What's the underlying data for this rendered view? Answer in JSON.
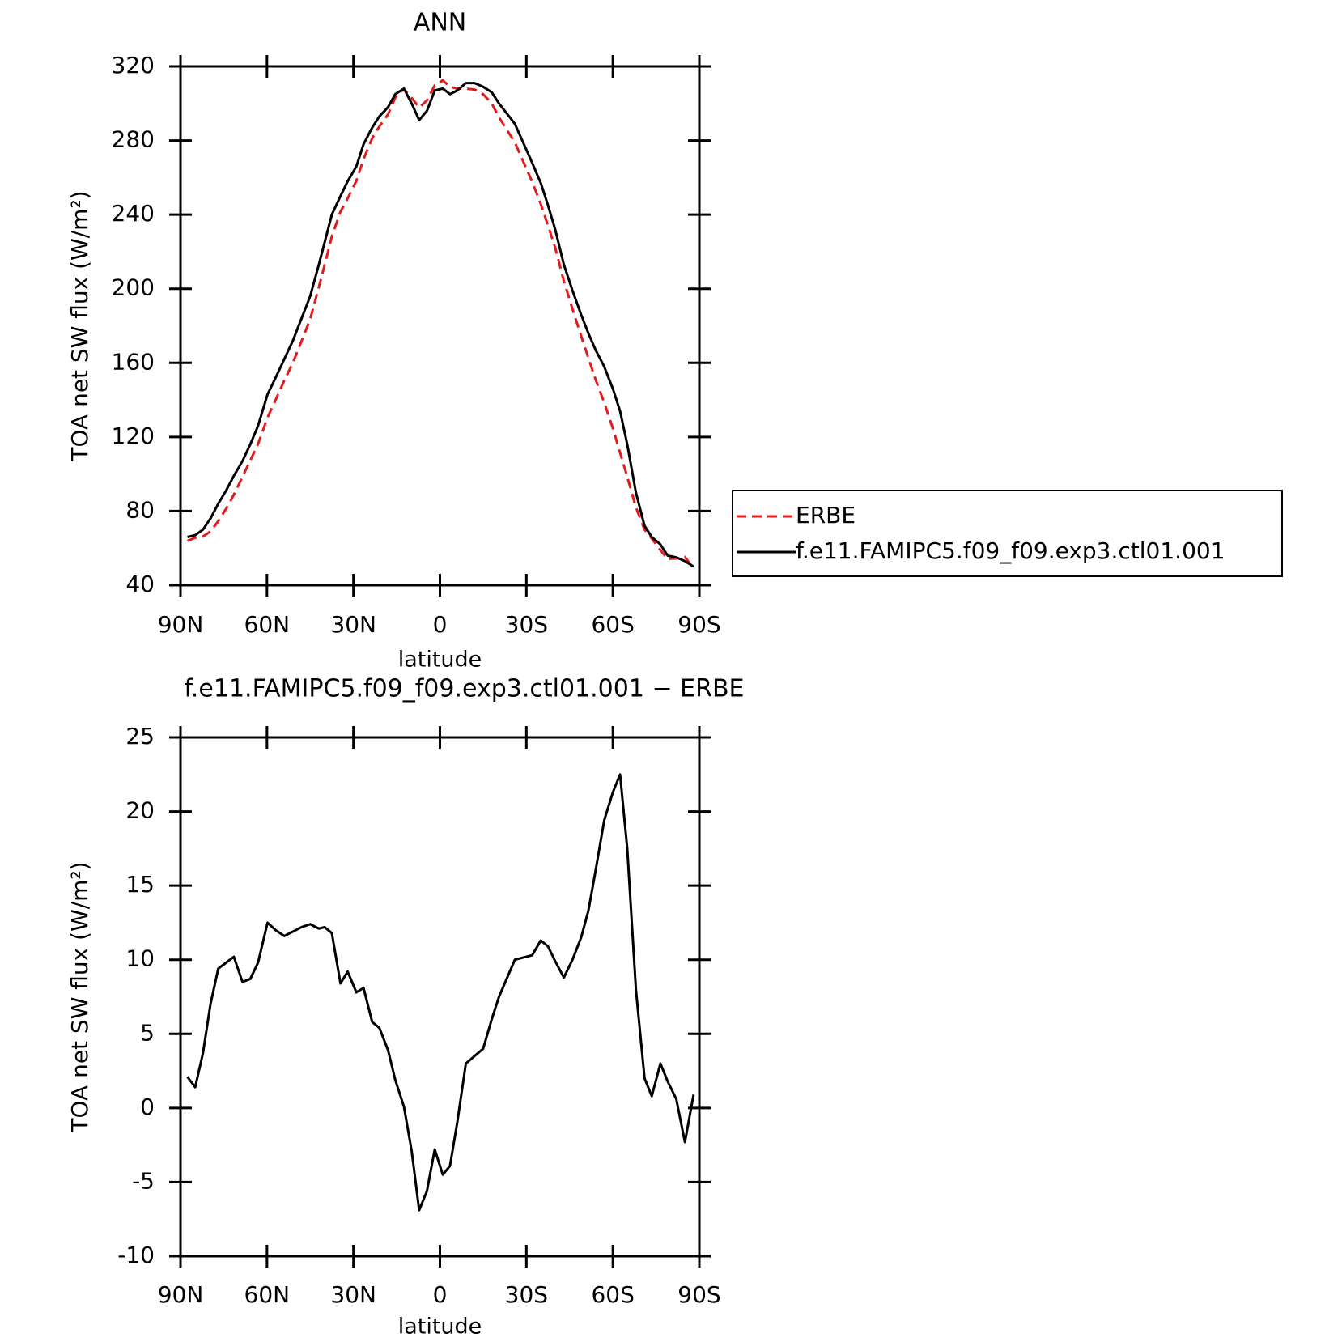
{
  "chart_data": [
    {
      "type": "line",
      "title": "ANN",
      "xlabel": "latitude",
      "ylabel": "TOA net SW flux (W/m²)",
      "x": [
        87.6,
        84.9,
        82.2,
        79.6,
        76.9,
        74.2,
        71.5,
        68.5,
        65.8,
        63.1,
        59.8,
        57,
        54,
        51,
        48,
        45,
        42,
        40,
        37.5,
        34.5,
        32,
        29,
        26.5,
        23.5,
        21,
        18,
        15.5,
        12.5,
        9.8,
        7.2,
        4.5,
        1.8,
        -1,
        -3.5,
        -6,
        -9,
        -12,
        -15,
        -18,
        -20.5,
        -26,
        -32,
        -35,
        -37.5,
        -40,
        -43,
        -46,
        -49,
        -51.5,
        -54,
        -57,
        -60,
        -62.5,
        -65,
        -68,
        -71,
        -73.5,
        -76.5,
        -79,
        -82,
        -85,
        -88
      ],
      "series": [
        {
          "name": "ERBE",
          "color": "#e41a1c",
          "linestyle": "dashed",
          "values": [
            63.9,
            65.6,
            66.3,
            69.0,
            74.6,
            81.2,
            88.8,
            98.5,
            107.3,
            116.2,
            130.5,
            140,
            150.4,
            160.1,
            171.8,
            183.6,
            200.9,
            212.8,
            228.2,
            241.6,
            248.8,
            258.2,
            269.9,
            281.2,
            287.6,
            294.1,
            303.1,
            307.9,
            302.9,
            297.9,
            301.6,
            309.8,
            312.5,
            308.9,
            308,
            308,
            307.5,
            305,
            300,
            292.5,
            279,
            257.7,
            245.7,
            234.1,
            222.1,
            204.2,
            189,
            174.5,
            162.7,
            151,
            138.6,
            124.7,
            111.5,
            98.5,
            82,
            70,
            65.2,
            59,
            54.2,
            54.4,
            55.3,
            49.1
          ]
        },
        {
          "name": "f.e11.FAMIPC5.f09_f09.exp3.ctl01.001",
          "color": "#000000",
          "linestyle": "solid",
          "values": [
            66,
            67,
            70,
            76,
            84,
            91,
            99,
            107,
            116,
            126,
            143,
            152,
            162,
            172,
            184,
            196,
            213,
            225,
            240,
            250,
            258,
            266,
            278,
            287,
            293,
            298,
            305,
            308,
            300,
            291,
            296,
            307,
            308,
            305,
            307,
            311,
            311,
            309,
            306,
            300,
            289,
            268,
            257,
            245,
            232,
            213,
            199,
            186,
            176,
            167,
            158,
            146,
            134,
            116,
            90,
            72,
            66,
            62,
            56,
            55,
            53,
            50
          ]
        }
      ],
      "xlim": [
        90,
        -90
      ],
      "xticks": [
        {
          "value": 90,
          "label": "90N"
        },
        {
          "value": 60,
          "label": "60N"
        },
        {
          "value": 30,
          "label": "30N"
        },
        0,
        {
          "value": -30,
          "label": "30S"
        },
        {
          "value": -60,
          "label": "60S"
        },
        {
          "value": -90,
          "label": "90S"
        }
      ],
      "ylim": [
        40,
        320
      ],
      "yticks": [
        40,
        80,
        120,
        160,
        200,
        240,
        280,
        320
      ],
      "legend": "right",
      "grid": false
    },
    {
      "type": "line",
      "title": "f.e11.FAMIPC5.f09_f09.exp3.ctl01.001 − ERBE",
      "xlabel": "latitude",
      "ylabel": "TOA net SW flux (W/m²)",
      "x": [
        87.6,
        84.9,
        82.2,
        79.6,
        76.9,
        74.2,
        71.5,
        68.5,
        65.8,
        63.1,
        59.8,
        57,
        54,
        51,
        48,
        45,
        42,
        40,
        37.5,
        34.5,
        32,
        29,
        26.5,
        23.5,
        21,
        18,
        15.5,
        12.5,
        9.8,
        7.2,
        4.5,
        1.8,
        -1,
        -3.5,
        -6,
        -9,
        -12,
        -15,
        -18,
        -20.5,
        -26,
        -32,
        -35,
        -37.5,
        -40,
        -43,
        -46,
        -49,
        -51.5,
        -54,
        -57,
        -60,
        -62.5,
        -65,
        -68,
        -71,
        -73.5,
        -76.5,
        -79,
        -82,
        -85,
        -88
      ],
      "series": [
        {
          "color": "#000000",
          "linestyle": "solid",
          "values": [
            2.1,
            1.4,
            3.7,
            7.0,
            9.4,
            9.8,
            10.2,
            8.5,
            8.7,
            9.8,
            12.5,
            12.0,
            11.6,
            11.9,
            12.2,
            12.4,
            12.1,
            12.2,
            11.8,
            8.4,
            9.2,
            7.8,
            8.1,
            5.8,
            5.4,
            3.9,
            1.9,
            0.1,
            -2.9,
            -6.9,
            -5.6,
            -2.8,
            -4.5,
            -3.9,
            -1,
            3.0,
            3.5,
            4.0,
            6,
            7.5,
            10,
            10.3,
            11.3,
            10.9,
            9.9,
            8.8,
            10,
            11.5,
            13.3,
            16,
            19.4,
            21.3,
            22.5,
            17.5,
            8,
            2,
            0.8,
            3.0,
            1.8,
            0.6,
            -2.3,
            0.9
          ]
        }
      ],
      "xlim": [
        90,
        -90
      ],
      "xticks": [
        {
          "value": 90,
          "label": "90N"
        },
        {
          "value": 60,
          "label": "60N"
        },
        {
          "value": 30,
          "label": "30N"
        },
        0,
        {
          "value": -30,
          "label": "30S"
        },
        {
          "value": -60,
          "label": "60S"
        },
        {
          "value": -90,
          "label": "90S"
        }
      ],
      "ylim": [
        -10,
        25
      ],
      "yticks": [
        -10,
        -5,
        0,
        5,
        10,
        15,
        20,
        25
      ],
      "grid": false
    }
  ]
}
